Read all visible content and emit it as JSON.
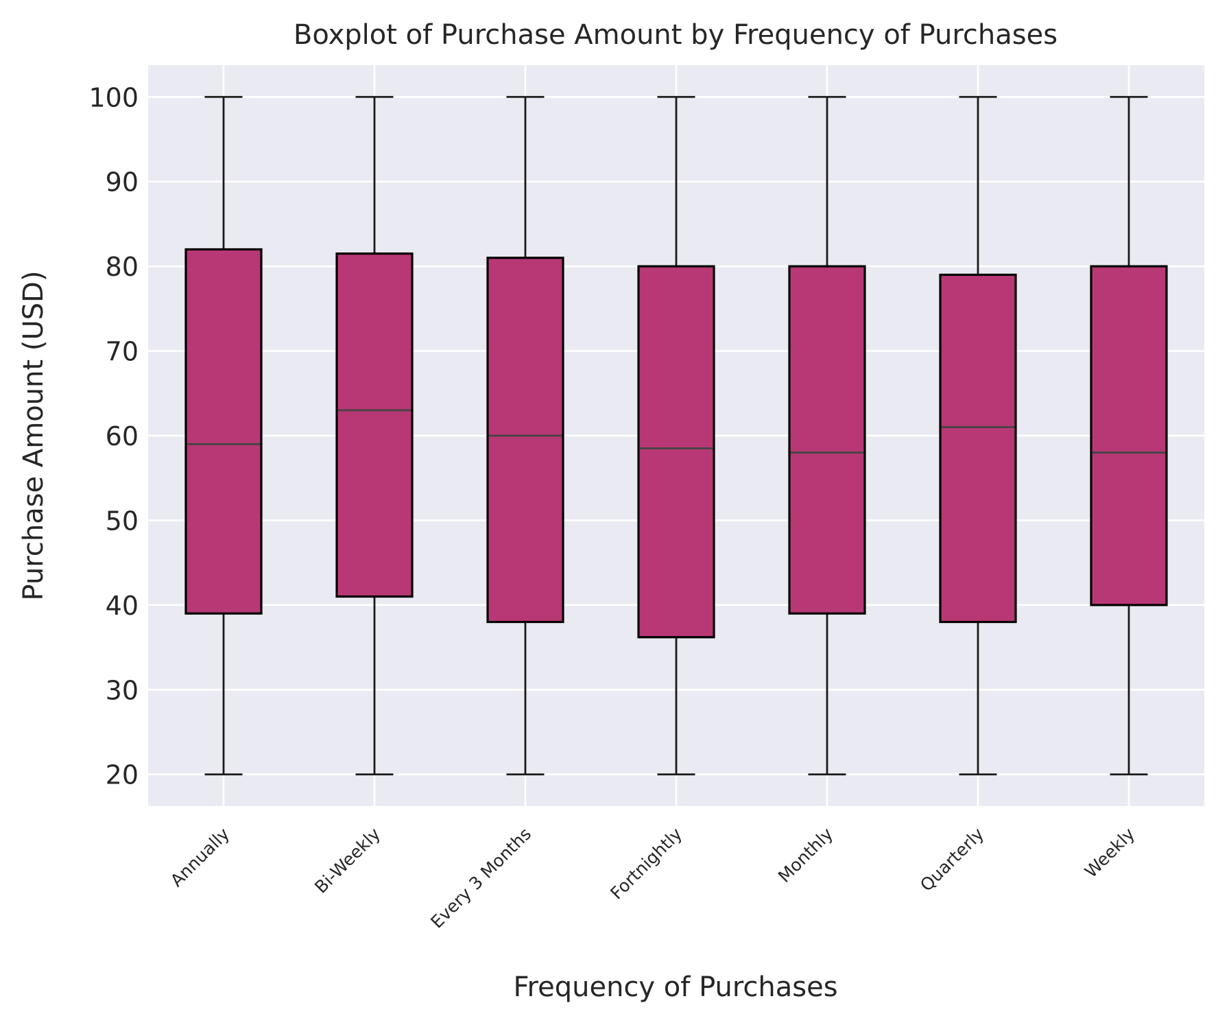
{
  "chart_data": {
    "type": "box",
    "title": "Boxplot of Purchase Amount by Frequency of Purchases",
    "xlabel": "Frequency of Purchases",
    "ylabel": "Purchase Amount (USD)",
    "categories": [
      "Annually",
      "Bi-Weekly",
      "Every 3 Months",
      "Fortnightly",
      "Monthly",
      "Quarterly",
      "Weekly"
    ],
    "boxes": [
      {
        "category": "Annually",
        "whisker_low": 20,
        "q1": 39,
        "median": 59,
        "q3": 82,
        "whisker_high": 100
      },
      {
        "category": "Bi-Weekly",
        "whisker_low": 20,
        "q1": 41,
        "median": 63,
        "q3": 81.5,
        "whisker_high": 100
      },
      {
        "category": "Every 3 Months",
        "whisker_low": 20,
        "q1": 38,
        "median": 60,
        "q3": 81,
        "whisker_high": 100
      },
      {
        "category": "Fortnightly",
        "whisker_low": 20,
        "q1": 36.2,
        "median": 58.5,
        "q3": 80,
        "whisker_high": 100
      },
      {
        "category": "Monthly",
        "whisker_low": 20,
        "q1": 39,
        "median": 58,
        "q3": 80,
        "whisker_high": 100
      },
      {
        "category": "Quarterly",
        "whisker_low": 20,
        "q1": 38,
        "median": 61,
        "q3": 79,
        "whisker_high": 100
      },
      {
        "category": "Weekly",
        "whisker_low": 20,
        "q1": 40,
        "median": 58,
        "q3": 80,
        "whisker_high": 100
      }
    ],
    "y_ticks": [
      20,
      30,
      40,
      50,
      60,
      70,
      80,
      90,
      100
    ],
    "ylim": [
      16.25,
      103.75
    ],
    "grid": true,
    "x_tick_rotation": "45 degrees",
    "colors": {
      "box_fill": "#b83875",
      "box_edge": "#000000",
      "median": "#444444",
      "whisker": "#1a1a1a",
      "plot_background": "#eaeaf2",
      "grid": "#ffffff"
    }
  }
}
